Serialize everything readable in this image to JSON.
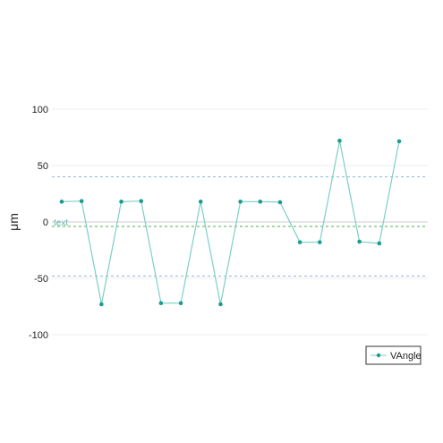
{
  "chart_data": {
    "type": "line",
    "title": "",
    "xlabel": "",
    "ylabel": "μm",
    "ylim": [
      -100,
      100
    ],
    "yticks": [
      100,
      50,
      0,
      -50,
      -100
    ],
    "ytick_labels": [
      "100",
      "50",
      "0",
      "-50",
      "-100"
    ],
    "grid": true,
    "legend_position": "bottom-right",
    "series": [
      {
        "name": "VAngle",
        "color": "#7dcfc6",
        "marker_color": "#1a9c8f",
        "x": [
          1,
          2,
          3,
          4,
          5,
          6,
          7,
          8,
          9,
          10,
          11,
          12,
          13,
          14,
          15,
          16,
          17,
          18
        ],
        "values": [
          18,
          18.5,
          -73,
          18,
          18.5,
          -72,
          -72,
          18,
          -73,
          18,
          18,
          17.5,
          -18,
          -18,
          72,
          -17.5,
          -19,
          71.5
        ]
      }
    ],
    "reference_lines": [
      {
        "y": 40,
        "color": "#8fb4dc",
        "style": "dashed"
      },
      {
        "y": -48,
        "color": "#8fb4dc",
        "style": "dashed"
      },
      {
        "y": -4,
        "color": "#4caf50",
        "style": "dashed",
        "label": "text",
        "label_color": "#4ab5a6"
      },
      {
        "y": 0,
        "color": "#cccccc",
        "style": "solid"
      }
    ]
  }
}
